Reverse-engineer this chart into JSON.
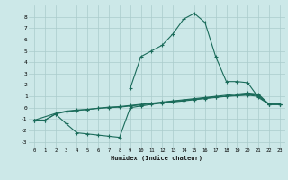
{
  "bg_color": "#cce8e8",
  "grid_color": "#aacccc",
  "line_color": "#1a6b5a",
  "line1_x": [
    9,
    10,
    11,
    12,
    13,
    14,
    15,
    16,
    17,
    18,
    19,
    20,
    21,
    22,
    23
  ],
  "line1_y": [
    1.7,
    4.5,
    5.0,
    5.5,
    6.5,
    7.8,
    8.3,
    7.5,
    4.5,
    2.3,
    2.3,
    2.2,
    0.9,
    0.3,
    0.3
  ],
  "line2_x": [
    0,
    1,
    2,
    3,
    4,
    5,
    6,
    7,
    8,
    9,
    10,
    11,
    12,
    13,
    14,
    15,
    16,
    17,
    18,
    19,
    20,
    21,
    22,
    23
  ],
  "line2_y": [
    -1.1,
    -1.1,
    -0.55,
    -0.35,
    -0.25,
    -0.15,
    -0.05,
    0.05,
    0.1,
    0.2,
    0.3,
    0.4,
    0.5,
    0.6,
    0.7,
    0.8,
    0.9,
    1.0,
    1.1,
    1.2,
    1.3,
    1.2,
    0.3,
    0.3
  ],
  "line3_x": [
    0,
    2,
    3,
    4,
    5,
    6,
    7,
    8,
    9,
    10,
    11,
    12,
    13,
    14,
    15,
    16,
    17,
    18,
    19,
    20,
    21,
    22,
    23
  ],
  "line3_y": [
    -1.1,
    -0.5,
    -0.3,
    -0.2,
    -0.15,
    -0.05,
    0.0,
    0.05,
    0.15,
    0.25,
    0.35,
    0.45,
    0.55,
    0.65,
    0.75,
    0.85,
    0.95,
    1.0,
    1.1,
    1.15,
    1.1,
    0.3,
    0.3
  ],
  "line4_x": [
    0,
    1,
    2,
    3,
    4,
    5,
    6,
    7,
    8,
    9,
    10,
    11,
    12,
    13,
    14,
    15,
    16,
    17,
    18,
    19,
    20,
    21,
    22,
    23
  ],
  "line4_y": [
    -1.1,
    -1.1,
    -0.55,
    -1.4,
    -2.2,
    -2.3,
    -2.4,
    -2.5,
    -2.6,
    0.0,
    0.15,
    0.3,
    0.4,
    0.5,
    0.6,
    0.7,
    0.8,
    0.9,
    1.0,
    1.05,
    1.1,
    1.0,
    0.3,
    0.3
  ],
  "xlabel": "Humidex (Indice chaleur)",
  "ylim": [
    -3.5,
    9.0
  ],
  "xlim": [
    -0.5,
    23.5
  ],
  "yticks": [
    -3,
    -2,
    -1,
    0,
    1,
    2,
    3,
    4,
    5,
    6,
    7,
    8
  ],
  "xticks": [
    0,
    1,
    2,
    3,
    4,
    5,
    6,
    7,
    8,
    9,
    10,
    11,
    12,
    13,
    14,
    15,
    16,
    17,
    18,
    19,
    20,
    21,
    22,
    23
  ]
}
